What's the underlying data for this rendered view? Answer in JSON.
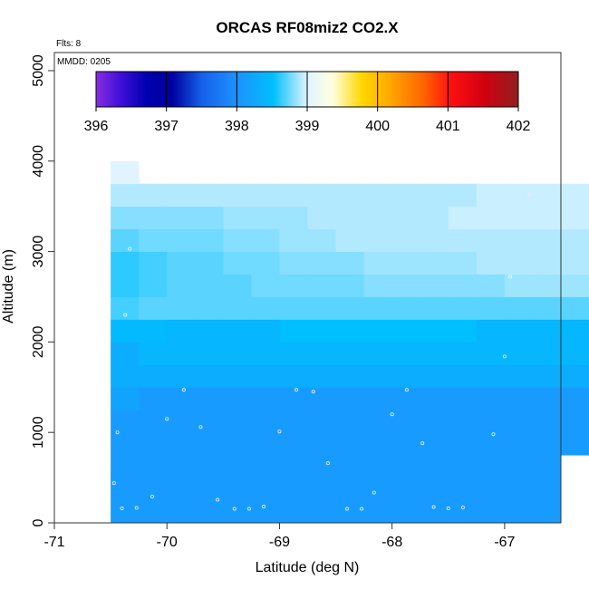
{
  "chart_data": {
    "type": "heatmap",
    "title": "ORCAS RF08miz2 CO2.X",
    "xlabel": "Latitude (deg N)",
    "ylabel": "Altitude (m)",
    "xlim": [
      -71,
      -66.5
    ],
    "ylim": [
      0,
      5200
    ],
    "x_ticks": [
      -71,
      -70,
      -69,
      -68,
      -67
    ],
    "y_ticks": [
      0,
      1000,
      2000,
      3000,
      4000,
      5000
    ],
    "x_tick_labels": [
      "-71",
      "-70",
      "-69",
      "-68",
      "-67"
    ],
    "y_tick_labels": [
      "0",
      "1000",
      "2000",
      "3000",
      "4000",
      "5000"
    ],
    "flights_text": "Flts: 8",
    "date_text": "MMDD: 0205",
    "colorbar": {
      "min": 396,
      "max": 402,
      "ticks": [
        396,
        397,
        398,
        399,
        400,
        401,
        402
      ],
      "tick_labels": [
        "396",
        "397",
        "398",
        "399",
        "400",
        "401",
        "402"
      ]
    },
    "cell_width_deg": 0.25,
    "cell_height_m": 250,
    "rows": [
      {
        "alt": 0,
        "x_start": -70.5,
        "values": [
          398.1,
          398.1,
          398.1,
          398.1,
          398.1,
          398.1,
          398.1,
          398.1,
          398.1,
          398.1,
          398.1,
          398.1,
          398.1,
          398.1,
          398.1,
          398.1
        ]
      },
      {
        "alt": 250,
        "x_start": -70.5,
        "values": [
          398.1,
          398.1,
          398.1,
          398.1,
          398.1,
          398.1,
          398.1,
          398.1,
          398.1,
          398.1,
          398.1,
          398.1,
          398.1,
          398.1,
          398.1,
          398.1
        ]
      },
      {
        "alt": 500,
        "x_start": -70.5,
        "values": [
          398.1,
          398.1,
          398.1,
          398.1,
          398.1,
          398.1,
          398.1,
          398.1,
          398.1,
          398.1,
          398.1,
          398.1,
          398.1,
          398.1,
          398.1,
          398.1
        ]
      },
      {
        "alt": 750,
        "x_start": -70.5,
        "values": [
          398.1,
          398.1,
          398.1,
          398.1,
          398.1,
          398.1,
          398.1,
          398.1,
          398.1,
          398.1,
          398.1,
          398.1,
          398.1,
          398.1,
          398.1,
          398.1,
          398.1,
          398.1
        ]
      },
      {
        "alt": 1000,
        "x_start": -70.5,
        "values": [
          398.1,
          398.1,
          398.1,
          398.1,
          398.1,
          398.1,
          398.1,
          398.1,
          398.1,
          398.1,
          398.1,
          398.1,
          398.1,
          398.1,
          398.1,
          398.1,
          398.1,
          398.1
        ]
      },
      {
        "alt": 1250,
        "x_start": -70.5,
        "values": [
          398.2,
          398.1,
          398.1,
          398.1,
          398.1,
          398.1,
          398.1,
          398.1,
          398.1,
          398.1,
          398.1,
          398.1,
          398.1,
          398.1,
          398.1,
          398.1,
          398.1,
          398.1
        ]
      },
      {
        "alt": 1500,
        "x_start": -70.5,
        "values": [
          398.3,
          398.3,
          398.3,
          398.3,
          398.3,
          398.3,
          398.3,
          398.3,
          398.3,
          398.3,
          398.3,
          398.3,
          398.3,
          398.3,
          398.3,
          398.3,
          398.3,
          398.3
        ]
      },
      {
        "alt": 1750,
        "x_start": -70.5,
        "values": [
          398.3,
          398.4,
          398.4,
          398.4,
          398.4,
          398.4,
          398.4,
          398.4,
          398.4,
          398.4,
          398.4,
          398.4,
          398.4,
          398.4,
          398.4,
          398.4,
          398.4,
          398.4
        ]
      },
      {
        "alt": 2000,
        "x_start": -70.5,
        "values": [
          398.45,
          398.45,
          398.4,
          398.4,
          398.4,
          398.4,
          398.5,
          398.5,
          398.5,
          398.5,
          398.5,
          398.5,
          398.5,
          398.4,
          398.4,
          398.4,
          398.4,
          398.45
        ]
      },
      {
        "alt": 2250,
        "x_start": -70.5,
        "values": [
          398.65,
          398.7,
          398.7,
          398.7,
          398.7,
          398.7,
          398.7,
          398.7,
          398.7,
          398.7,
          398.7,
          398.7,
          398.7,
          398.7,
          398.7,
          398.7,
          398.7,
          398.7
        ]
      },
      {
        "alt": 2500,
        "x_start": -70.5,
        "values": [
          398.6,
          398.65,
          398.7,
          398.7,
          398.7,
          398.75,
          398.75,
          398.75,
          398.75,
          398.8,
          398.8,
          398.8,
          398.8,
          398.8,
          398.85,
          398.85,
          398.85,
          398.85,
          398.9
        ]
      },
      {
        "alt": 2750,
        "x_start": -70.5,
        "values": [
          398.6,
          398.65,
          398.7,
          398.7,
          398.75,
          398.75,
          398.8,
          398.8,
          398.8,
          398.85,
          398.85,
          398.85,
          398.85,
          398.9,
          398.9,
          398.9,
          398.9,
          398.9,
          398.9
        ]
      },
      {
        "alt": 3000,
        "x_start": -70.5,
        "values": [
          398.7,
          398.75,
          398.75,
          398.75,
          398.8,
          398.8,
          398.85,
          398.85,
          398.9,
          398.9,
          398.9,
          398.9,
          398.9,
          398.9,
          398.9,
          398.9,
          398.9,
          398.95,
          398.95
        ]
      },
      {
        "alt": 3250,
        "x_start": -70.5,
        "values": [
          398.8,
          398.8,
          398.8,
          398.8,
          398.85,
          398.85,
          398.85,
          398.9,
          398.9,
          398.9,
          398.9,
          398.9,
          398.95,
          398.95,
          398.95,
          398.95,
          398.95,
          398.95,
          398.95
        ]
      },
      {
        "alt": 3500,
        "x_start": -70.5,
        "values": [
          398.9,
          398.9,
          398.9,
          398.9,
          398.9,
          398.9,
          398.9,
          398.9,
          398.9,
          398.9,
          398.9,
          398.9,
          398.9,
          398.95,
          398.95,
          398.95,
          398.95,
          398.95,
          398.95
        ]
      },
      {
        "alt": 3750,
        "x_start": -70.5,
        "values": [
          399.0
        ]
      }
    ],
    "points": [
      {
        "x": -70.47,
        "y": 440
      },
      {
        "x": -70.4,
        "y": 160
      },
      {
        "x": -70.27,
        "y": 165
      },
      {
        "x": -70.13,
        "y": 290
      },
      {
        "x": -69.55,
        "y": 255
      },
      {
        "x": -69.4,
        "y": 155
      },
      {
        "x": -69.27,
        "y": 155
      },
      {
        "x": -69.14,
        "y": 180
      },
      {
        "x": -68.4,
        "y": 155
      },
      {
        "x": -68.27,
        "y": 155
      },
      {
        "x": -68.16,
        "y": 335
      },
      {
        "x": -67.63,
        "y": 175
      },
      {
        "x": -67.5,
        "y": 160
      },
      {
        "x": -67.37,
        "y": 170
      },
      {
        "x": -70.44,
        "y": 1000
      },
      {
        "x": -70.0,
        "y": 1150
      },
      {
        "x": -69.7,
        "y": 1060
      },
      {
        "x": -69.0,
        "y": 1010
      },
      {
        "x": -68.57,
        "y": 660
      },
      {
        "x": -68.0,
        "y": 1200
      },
      {
        "x": -67.73,
        "y": 880
      },
      {
        "x": -67.1,
        "y": 980
      },
      {
        "x": -69.85,
        "y": 1470
      },
      {
        "x": -68.85,
        "y": 1470
      },
      {
        "x": -68.7,
        "y": 1450
      },
      {
        "x": -67.87,
        "y": 1470
      },
      {
        "x": -67.0,
        "y": 1840
      },
      {
        "x": -70.37,
        "y": 2300
      },
      {
        "x": -70.33,
        "y": 3030
      },
      {
        "x": -66.95,
        "y": 2720
      },
      {
        "x": -66.78,
        "y": 3620
      },
      {
        "x": -70.25,
        "y": 3790
      }
    ]
  }
}
